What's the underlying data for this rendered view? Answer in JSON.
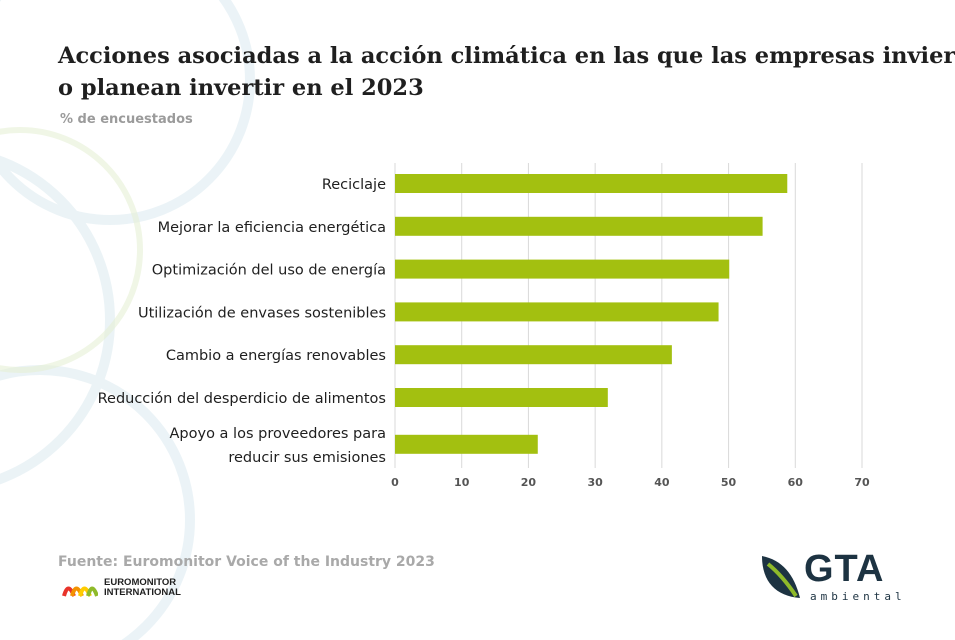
{
  "title_line1": "Acciones asociadas a la acción climática en las que las empresas invierten",
  "title_line2": "o planean invertir en el 2023",
  "subtitle": "% de encuestados",
  "source": "Fuente: Euromonitor Voice of the Industry 2023",
  "euromonitor": {
    "line1": "EUROMONITOR",
    "line2": "INTERNATIONAL"
  },
  "gta": {
    "name": "GTA",
    "sub": "ambiental"
  },
  "colors": {
    "bar": "#a3c010",
    "grid": "#d9d9d9",
    "text": "#1f1f1f",
    "accent_blue": "#1d3342",
    "accent_green": "#8fba2a"
  },
  "chart_data": {
    "type": "bar",
    "orientation": "horizontal",
    "categories": [
      [
        "Reciclaje"
      ],
      [
        "Mejorar la eficiencia energética"
      ],
      [
        "Optimización del uso de energía"
      ],
      [
        "Utilización de envases sostenibles"
      ],
      [
        "Cambio a energías renovables"
      ],
      [
        "Reducción del desperdicio de alimentos"
      ],
      [
        "Apoyo a los proveedores para",
        "reducir sus emisiones"
      ]
    ],
    "values": [
      58.8,
      55.1,
      50.1,
      48.5,
      41.5,
      31.9,
      21.4
    ],
    "xlim": [
      0,
      70
    ],
    "xticks": [
      0,
      10,
      20,
      30,
      40,
      50,
      60,
      70
    ],
    "grid": true
  }
}
